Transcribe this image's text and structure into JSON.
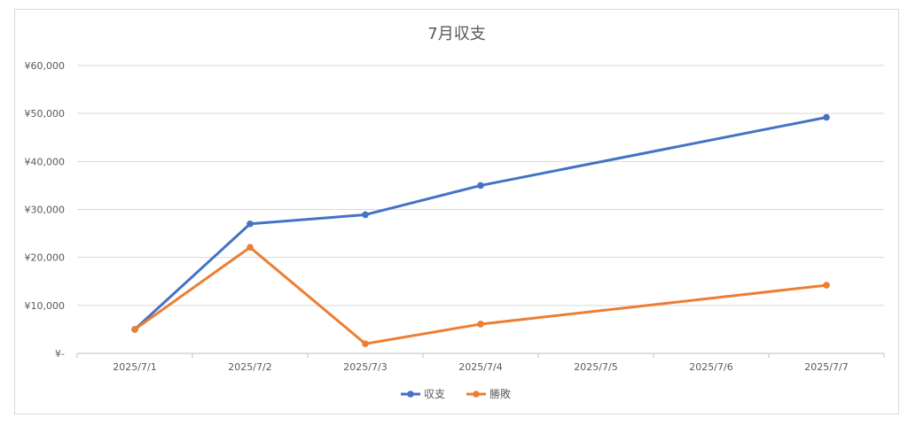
{
  "chart_data": {
    "type": "line",
    "title": "7月収支",
    "categories": [
      "2025/7/1",
      "2025/7/2",
      "2025/7/3",
      "2025/7/4",
      "2025/7/5",
      "2025/7/6",
      "2025/7/7"
    ],
    "yticks": [
      "¥-",
      "¥10,000",
      "¥20,000",
      "¥30,000",
      "¥40,000",
      "¥50,000",
      "¥60,000"
    ],
    "ylim": [
      0,
      60000
    ],
    "grid": true,
    "legend_position": "bottom",
    "series": [
      {
        "name": "収支",
        "color": "#4472C4",
        "values": [
          5000,
          27000,
          28900,
          35000,
          null,
          null,
          49200
        ]
      },
      {
        "name": "勝敗",
        "color": "#ED7D31",
        "values": [
          5000,
          22100,
          2000,
          6100,
          null,
          null,
          14200
        ]
      }
    ]
  }
}
